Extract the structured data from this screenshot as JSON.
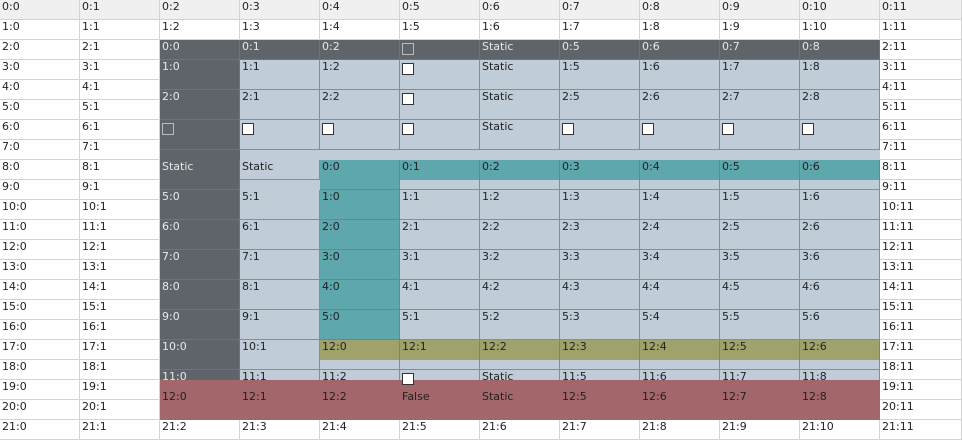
{
  "outer_grid": {
    "rows": [
      [
        "0:0",
        "0:1",
        "0:2",
        "0:3",
        "0:4",
        "0:5",
        "0:6",
        "0:7",
        "0:8",
        "0:9",
        "0:10",
        "0:11"
      ],
      [
        "1:0",
        "1:1",
        "1:2",
        "1:3",
        "1:4",
        "1:5",
        "1:6",
        "1:7",
        "1:8",
        "1:9",
        "1:10",
        "1:11"
      ],
      [
        "2:0",
        "2:1",
        "",
        "",
        "",
        "",
        "",
        "",
        "",
        "",
        "",
        "2:11"
      ],
      [
        "3:0",
        "3:1",
        "",
        "",
        "",
        "",
        "",
        "",
        "",
        "",
        "",
        "3:11"
      ],
      [
        "4:0",
        "4:1",
        "",
        "",
        "",
        "",
        "",
        "",
        "",
        "",
        "",
        "4:11"
      ],
      [
        "5:0",
        "5:1",
        "",
        "",
        "",
        "",
        "",
        "",
        "",
        "",
        "",
        "5:11"
      ],
      [
        "6:0",
        "6:1",
        "",
        "",
        "",
        "",
        "",
        "",
        "",
        "",
        "",
        "6:11"
      ],
      [
        "7:0",
        "7:1",
        "",
        "",
        "",
        "",
        "",
        "",
        "",
        "",
        "",
        "7:11"
      ],
      [
        "8:0",
        "8:1",
        "",
        "",
        "",
        "",
        "",
        "",
        "",
        "",
        "",
        "8:11"
      ],
      [
        "9:0",
        "9:1",
        "",
        "",
        "",
        "",
        "",
        "",
        "",
        "",
        "",
        "9:11"
      ],
      [
        "10:0",
        "10:1",
        "",
        "",
        "",
        "",
        "",
        "",
        "",
        "",
        "",
        "10:11"
      ],
      [
        "11:0",
        "11:1",
        "",
        "",
        "",
        "",
        "",
        "",
        "",
        "",
        "",
        "11:11"
      ],
      [
        "12:0",
        "12:1",
        "",
        "",
        "",
        "",
        "",
        "",
        "",
        "",
        "",
        "12:11"
      ],
      [
        "13:0",
        "13:1",
        "",
        "",
        "",
        "",
        "",
        "",
        "",
        "",
        "",
        "13:11"
      ],
      [
        "14:0",
        "14:1",
        "",
        "",
        "",
        "",
        "",
        "",
        "",
        "",
        "",
        "14:11"
      ],
      [
        "15:0",
        "15:1",
        "",
        "",
        "",
        "",
        "",
        "",
        "",
        "",
        "",
        "15:11"
      ],
      [
        "16:0",
        "16:1",
        "",
        "",
        "",
        "",
        "",
        "",
        "",
        "",
        "",
        "16:11"
      ],
      [
        "17:0",
        "17:1",
        "",
        "",
        "",
        "",
        "",
        "",
        "",
        "",
        "",
        "17:11"
      ],
      [
        "18:0",
        "18:1",
        "",
        "",
        "",
        "",
        "",
        "",
        "",
        "",
        "",
        "18:11"
      ],
      [
        "19:0",
        "19:1",
        "",
        "",
        "",
        "",
        "",
        "",
        "",
        "",
        "",
        "19:11"
      ],
      [
        "20:0",
        "20:1",
        "",
        "",
        "",
        "",
        "",
        "",
        "",
        "",
        "",
        "20:11"
      ],
      [
        "21:0",
        "21:1",
        "21:2",
        "21:3",
        "21:4",
        "21:5",
        "21:6",
        "21:7",
        "21:8",
        "21:9",
        "21:10",
        "21:11"
      ]
    ]
  },
  "colors": {
    "dark": "#5f646b",
    "light": "#c0ccd8",
    "teal": "#5ea8ad",
    "olive": "#9fa36b",
    "rose": "#a3666b",
    "header": "#f0f0f0"
  },
  "inner_grids": [
    {
      "name": "dark-grid",
      "color": "dark",
      "rows": [
        [
          "0:0",
          "0:1",
          "0:2",
          "CB",
          "Static",
          "0:5",
          "0:6",
          "0:7",
          "0:8"
        ],
        [
          "1:0"
        ],
        [
          "2:0"
        ],
        [
          "CB"
        ],
        [
          "Static",
          "Static"
        ],
        [
          "5:0"
        ],
        [
          "6:0"
        ],
        [
          "7:0"
        ],
        [
          "8:0"
        ],
        [
          "9:0"
        ],
        [
          "10:0"
        ],
        [
          "11:0"
        ]
      ]
    },
    {
      "name": "light-grid",
      "color": "light",
      "rows": [
        [
          "1:1",
          "1:2",
          "CB",
          "Static",
          "1:5",
          "1:6",
          "1:7",
          "1:8"
        ],
        [
          "2:1",
          "2:2",
          "CB",
          "Static",
          "2:5",
          "2:6",
          "2:7",
          "2:8"
        ],
        [
          "CB",
          "CB",
          "CB",
          "Static",
          "CB",
          "CB",
          "CB",
          "CB"
        ],
        [
          "5:1",
          "1:1",
          "1:2",
          "1:3",
          "1:4",
          "1:5",
          "1:6"
        ],
        [
          "6:1",
          "2:1",
          "2:2",
          "2:3",
          "2:4",
          "2:5",
          "2:6"
        ],
        [
          "7:1",
          "3:1",
          "3:2",
          "3:3",
          "3:4",
          "3:5",
          "3:6"
        ],
        [
          "8:1",
          "4:1",
          "4:2",
          "4:3",
          "4:4",
          "4:5",
          "4:6"
        ],
        [
          "9:1",
          "5:1",
          "5:2",
          "5:3",
          "5:4",
          "5:5",
          "5:6"
        ],
        [
          "10:1"
        ],
        [
          "11:1",
          "11:2",
          "CB",
          "Static",
          "11:5",
          "11:6",
          "11:7",
          "11:8"
        ]
      ]
    },
    {
      "name": "teal-grid",
      "color": "teal",
      "rows": [
        [
          "0:0",
          "0:1",
          "0:2",
          "0:3",
          "0:4",
          "0:5",
          "0:6"
        ],
        [
          "1:0"
        ],
        [
          "2:0"
        ],
        [
          "3:0"
        ],
        [
          "4:0"
        ],
        [
          "5:0"
        ]
      ]
    },
    {
      "name": "olive-grid",
      "color": "olive",
      "rows": [
        [
          "12:0",
          "12:1",
          "12:2",
          "12:3",
          "12:4",
          "12:5",
          "12:6"
        ]
      ]
    },
    {
      "name": "rose-grid",
      "color": "rose",
      "rows": [
        [
          "12:0",
          "12:1",
          "12:2",
          "False",
          "Static",
          "12:5",
          "12:6",
          "12:7",
          "12:8"
        ]
      ]
    }
  ]
}
